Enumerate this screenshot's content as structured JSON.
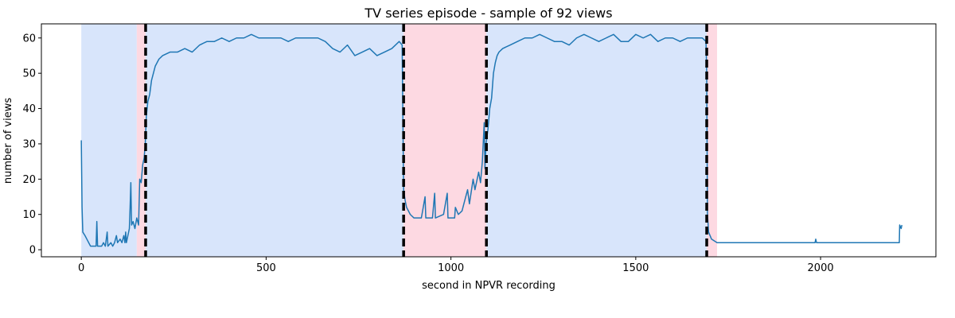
{
  "chart_data": {
    "type": "line",
    "title": "TV series episode - sample of 92 views",
    "xlabel": "second in NPVR recording",
    "ylabel": "number of views",
    "xlim": [
      -108,
      2312
    ],
    "ylim": [
      -2,
      64
    ],
    "xticks": [
      0,
      500,
      1000,
      1500,
      2000
    ],
    "yticks": [
      0,
      10,
      20,
      30,
      40,
      50,
      60
    ],
    "spans": [
      {
        "start": 0,
        "end": 150,
        "color": "#d8e5fb"
      },
      {
        "start": 150,
        "end": 174,
        "color": "#fdd9e2"
      },
      {
        "start": 174,
        "end": 872,
        "color": "#d8e5fb"
      },
      {
        "start": 872,
        "end": 1096,
        "color": "#fdd9e2"
      },
      {
        "start": 1096,
        "end": 1692,
        "color": "#d8e5fb"
      },
      {
        "start": 1692,
        "end": 1720,
        "color": "#fdd9e2"
      }
    ],
    "vlines": [
      174,
      872,
      1096,
      1692
    ],
    "vline_color": "#000000",
    "x": [
      0,
      2,
      4,
      10,
      15,
      20,
      25,
      40,
      42,
      44,
      55,
      60,
      65,
      70,
      72,
      80,
      85,
      90,
      95,
      98,
      105,
      110,
      115,
      118,
      120,
      122,
      130,
      132,
      134,
      136,
      140,
      145,
      150,
      155,
      158,
      162,
      166,
      170,
      173,
      176,
      180,
      185,
      190,
      200,
      210,
      220,
      240,
      260,
      280,
      300,
      320,
      340,
      360,
      380,
      400,
      420,
      440,
      460,
      480,
      500,
      520,
      540,
      560,
      580,
      600,
      640,
      660,
      680,
      700,
      720,
      740,
      760,
      780,
      800,
      820,
      840,
      860,
      868,
      872,
      876,
      880,
      890,
      900,
      920,
      930,
      932,
      950,
      956,
      958,
      980,
      990,
      992,
      1010,
      1012,
      1020,
      1030,
      1040,
      1045,
      1050,
      1060,
      1065,
      1075,
      1080,
      1085,
      1090,
      1092,
      1095,
      1100,
      1105,
      1110,
      1115,
      1120,
      1125,
      1130,
      1140,
      1160,
      1180,
      1200,
      1220,
      1240,
      1260,
      1280,
      1300,
      1320,
      1340,
      1360,
      1380,
      1400,
      1420,
      1440,
      1460,
      1480,
      1500,
      1520,
      1540,
      1560,
      1580,
      1600,
      1620,
      1640,
      1660,
      1680,
      1690,
      1692,
      1694,
      1697,
      1705,
      1720,
      1800,
      1900,
      1985,
      1987,
      1989,
      2100,
      2213,
      2214,
      2218,
      2220
    ],
    "series": [
      {
        "color": "#1f77b4",
        "values": [
          31,
          12,
          5,
          4,
          3,
          2,
          1,
          1,
          8,
          1,
          1,
          2,
          1,
          5,
          1,
          2,
          1,
          2,
          4,
          2,
          3,
          2,
          4,
          2,
          5,
          2,
          6,
          12,
          19,
          7,
          8,
          6,
          9,
          7,
          20,
          19,
          24,
          26,
          30,
          38,
          42,
          44,
          48,
          52,
          54,
          55,
          56,
          56,
          57,
          56,
          58,
          59,
          59,
          60,
          59,
          60,
          60,
          61,
          60,
          60,
          60,
          60,
          59,
          60,
          60,
          60,
          59,
          57,
          56,
          58,
          55,
          56,
          57,
          55,
          56,
          57,
          59,
          58,
          17,
          14,
          12,
          10,
          9,
          9,
          15,
          9,
          9,
          16,
          9,
          10,
          16,
          9,
          9,
          12,
          10,
          11,
          15,
          17,
          13,
          20,
          17,
          22,
          19,
          25,
          36,
          23,
          30,
          34,
          40,
          43,
          50,
          53,
          55,
          56,
          57,
          58,
          59,
          60,
          60,
          61,
          60,
          59,
          59,
          58,
          60,
          61,
          60,
          59,
          60,
          61,
          59,
          59,
          61,
          60,
          61,
          59,
          60,
          60,
          59,
          60,
          60,
          60,
          59,
          50,
          10,
          5,
          3,
          2,
          2,
          2,
          2,
          3,
          2,
          2,
          2,
          7,
          6,
          7
        ]
      }
    ]
  }
}
